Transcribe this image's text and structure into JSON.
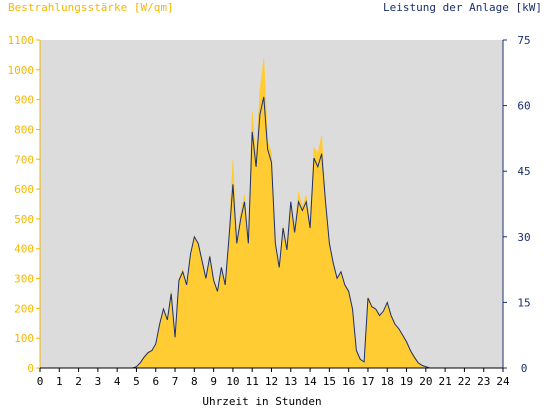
{
  "chart_data": {
    "type": "area",
    "left_axis_title": "Bestrahlungsstärke [W/qm]",
    "right_axis_title": "Leistung der Anlage [kW]",
    "xlabel": "Uhrzeit in Stunden",
    "x_ticks": [
      "0",
      "1",
      "2",
      "3",
      "4",
      "5",
      "6",
      "7",
      "8",
      "9",
      "10",
      "11",
      "12",
      "13",
      "14",
      "15",
      "16",
      "17",
      "18",
      "19",
      "20",
      "21",
      "22",
      "23",
      "24"
    ],
    "left_ticks": [
      "0",
      "100",
      "200",
      "300",
      "400",
      "500",
      "600",
      "700",
      "800",
      "900",
      "1000",
      "1100"
    ],
    "right_ticks": [
      "0",
      "15",
      "30",
      "45",
      "60",
      "75"
    ],
    "xlim": [
      0,
      24
    ],
    "ylim_left": [
      0,
      1100
    ],
    "ylim_right": [
      0,
      75
    ],
    "grid": false,
    "colors": {
      "irradiance_fill": "#ffcc33",
      "power_line": "#1b2f6e",
      "plot_background": "#dcdcdc",
      "left_axis": "#f5b800",
      "right_axis": "#1b2f6e"
    },
    "series": [
      {
        "axis": "left",
        "x": [
          0,
          4.8,
          5.0,
          5.2,
          5.4,
          5.6,
          5.8,
          6.0,
          6.2,
          6.4,
          6.6,
          6.8,
          7.0,
          7.2,
          7.4,
          7.6,
          7.8,
          8.0,
          8.2,
          8.4,
          8.6,
          8.8,
          9.0,
          9.2,
          9.4,
          9.6,
          9.8,
          10.0,
          10.2,
          10.4,
          10.6,
          10.8,
          11.0,
          11.2,
          11.4,
          11.6,
          11.8,
          12.0,
          12.2,
          12.4,
          12.6,
          12.8,
          13.0,
          13.2,
          13.4,
          13.6,
          13.8,
          14.0,
          14.2,
          14.4,
          14.6,
          14.8,
          15.0,
          15.2,
          15.4,
          15.6,
          15.8,
          16.0,
          16.2,
          16.4,
          16.6,
          16.8,
          17.0,
          17.2,
          17.4,
          17.6,
          17.8,
          18.0,
          18.2,
          18.4,
          18.6,
          18.8,
          19.0,
          19.2,
          19.4,
          19.6,
          19.8,
          20.0,
          20.2,
          24
        ],
        "values": [
          0,
          0,
          5,
          20,
          40,
          55,
          60,
          80,
          150,
          200,
          160,
          260,
          100,
          300,
          330,
          280,
          380,
          440,
          420,
          360,
          300,
          380,
          300,
          260,
          340,
          280,
          450,
          700,
          420,
          520,
          580,
          420,
          860,
          700,
          930,
          1040,
          760,
          720,
          420,
          340,
          480,
          400,
          560,
          460,
          590,
          540,
          580,
          480,
          740,
          720,
          780,
          560,
          420,
          350,
          300,
          320,
          280,
          260,
          200,
          60,
          30,
          20,
          240,
          210,
          200,
          180,
          190,
          220,
          180,
          150,
          130,
          110,
          90,
          60,
          40,
          20,
          10,
          5,
          0,
          0
        ]
      },
      {
        "axis": "right",
        "x": [
          0,
          4.8,
          5.0,
          5.2,
          5.4,
          5.6,
          5.8,
          6.0,
          6.2,
          6.4,
          6.6,
          6.8,
          7.0,
          7.2,
          7.4,
          7.6,
          7.8,
          8.0,
          8.2,
          8.4,
          8.6,
          8.8,
          9.0,
          9.2,
          9.4,
          9.6,
          9.8,
          10.0,
          10.2,
          10.4,
          10.6,
          10.8,
          11.0,
          11.2,
          11.4,
          11.6,
          11.8,
          12.0,
          12.2,
          12.4,
          12.6,
          12.8,
          13.0,
          13.2,
          13.4,
          13.6,
          13.8,
          14.0,
          14.2,
          14.4,
          14.6,
          14.8,
          15.0,
          15.2,
          15.4,
          15.6,
          15.8,
          16.0,
          16.2,
          16.4,
          16.6,
          16.8,
          17.0,
          17.2,
          17.4,
          17.6,
          17.8,
          18.0,
          18.2,
          18.4,
          18.6,
          18.8,
          19.0,
          19.2,
          19.4,
          19.6,
          19.8,
          20.0,
          20.2,
          24
        ],
        "values": [
          0,
          0,
          0.3,
          1.2,
          2.5,
          3.5,
          4,
          5.5,
          10,
          13.5,
          11,
          17,
          7,
          20,
          22,
          19,
          26,
          30,
          28.5,
          24.5,
          20.5,
          25.5,
          20,
          17.5,
          23,
          19,
          30,
          42,
          28.5,
          34,
          38,
          28.5,
          54,
          46,
          58,
          62,
          50,
          47,
          28.5,
          23,
          32,
          27,
          38,
          31,
          38,
          36,
          38,
          32,
          48,
          46,
          49,
          38,
          28.5,
          24,
          20.5,
          22,
          19,
          17.5,
          13.5,
          4,
          2,
          1.4,
          16,
          14,
          13.5,
          12,
          13,
          15,
          12,
          10,
          9,
          7.5,
          6,
          4,
          2.5,
          1.2,
          0.6,
          0.3,
          0,
          0
        ]
      }
    ]
  }
}
